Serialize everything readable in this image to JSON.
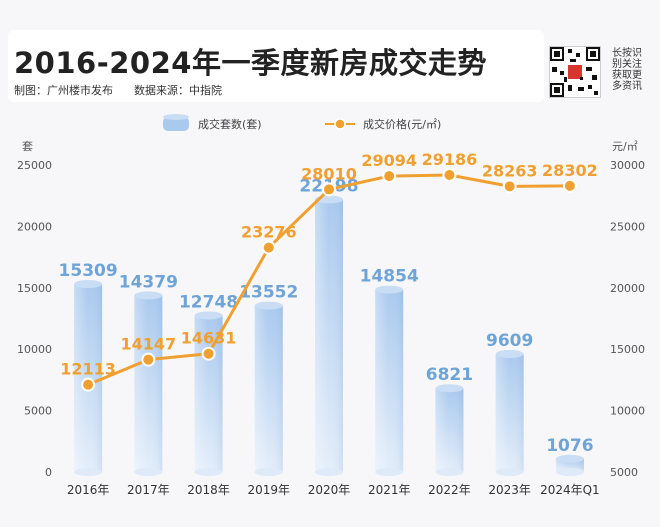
{
  "header": {
    "title": "2016-2024年一季度新房成交走势",
    "credit_maker": "制图：广州楼市发布",
    "credit_source": "数据来源：中指院",
    "side_note": "长按识别关注获取更多资讯"
  },
  "colors": {
    "bar": "#a9c9ee",
    "line": "#f0a030"
  },
  "chart_data": {
    "type": "bar",
    "categories": [
      "2016年",
      "2017年",
      "2018年",
      "2019年",
      "2020年",
      "2021年",
      "2022年",
      "2023年",
      "2024年Q1"
    ],
    "series": [
      {
        "name": "成交套数(套)",
        "type": "bar",
        "axis": "left",
        "values": [
          15309,
          14379,
          12748,
          13552,
          22198,
          14854,
          6821,
          9609,
          1076
        ]
      },
      {
        "name": "成交价格(元/㎡)",
        "type": "line",
        "axis": "right",
        "values": [
          12113,
          14147,
          14631,
          23276,
          28010,
          29094,
          29186,
          28263,
          28302
        ]
      }
    ],
    "left_axis": {
      "unit": "套",
      "range": [
        0,
        25000
      ],
      "ticks": [
        0,
        5000,
        10000,
        15000,
        20000,
        25000
      ]
    },
    "right_axis": {
      "unit": "元/㎡",
      "range": [
        5000,
        30000
      ],
      "ticks": [
        5000,
        10000,
        15000,
        20000,
        25000,
        30000
      ]
    },
    "legend_position": "top-center",
    "grid": false
  }
}
